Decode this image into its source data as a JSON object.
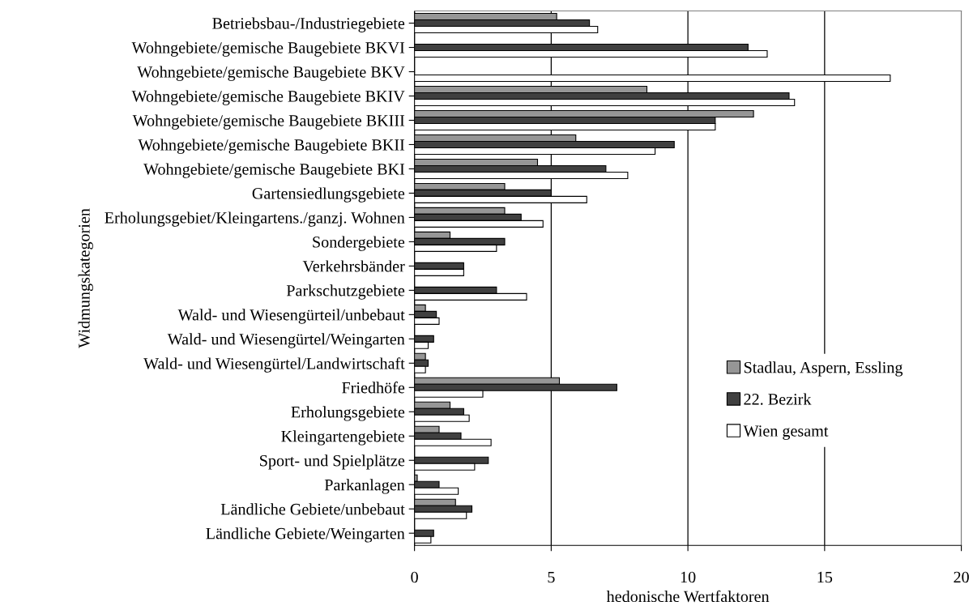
{
  "chart_data": {
    "type": "bar",
    "orientation": "horizontal",
    "xlabel": "hedonische Wertfaktoren",
    "ylabel": "Widmungskategorien",
    "categories": [
      "Betriebsbau-/Industriegebiete",
      "Wohngebiete/gemische Baugebiete BKVI",
      "Wohngebiete/gemische Baugebiete BKV",
      "Wohngebiete/gemische Baugebiete BKIV",
      "Wohngebiete/gemische Baugebiete BKIII",
      "Wohngebiete/gemische Baugebiete BKII",
      "Wohngebiete/gemische Baugebiete BKI",
      "Gartensiedlungsgebiete",
      "Erholungsgebiet/Kleingartens./ganzj. Wohnen",
      "Sondergebiete",
      "Verkehrsbänder",
      "Parkschutzgebiete",
      "Wald- und Wiesengürteil/unbebaut",
      "Wald- und Wiesengürtel/Weingarten",
      "Wald- und Wiesengürtel/Landwirtschaft",
      "Friedhöfe",
      "Erholungsgebiete",
      "Kleingartengebiete",
      "Sport- und Spielplätze",
      "Parkanlagen",
      "Ländliche Gebiete/unbebaut",
      "Ländliche Gebiete/Weingarten"
    ],
    "series": [
      {
        "name": "Stadlau, Aspern, Essling",
        "color": "#969696",
        "values": [
          5.2,
          null,
          null,
          8.5,
          12.4,
          5.9,
          4.5,
          3.3,
          3.3,
          1.3,
          null,
          null,
          0.4,
          null,
          0.4,
          5.3,
          1.3,
          0.9,
          null,
          0.1,
          1.5,
          null
        ]
      },
      {
        "name": "22. Bezirk",
        "color": "#404040",
        "values": [
          6.4,
          12.2,
          null,
          13.7,
          11.0,
          9.5,
          7.0,
          5.0,
          3.9,
          3.3,
          1.8,
          3.0,
          0.8,
          0.7,
          0.5,
          7.4,
          1.8,
          1.7,
          2.7,
          0.9,
          2.1,
          0.7
        ]
      },
      {
        "name": "Wien gesamt",
        "color": "#ffffff",
        "values": [
          6.7,
          12.9,
          17.4,
          13.9,
          11.0,
          8.8,
          7.8,
          6.3,
          4.7,
          3.0,
          1.8,
          4.1,
          0.9,
          0.5,
          0.4,
          2.5,
          2.0,
          2.8,
          2.2,
          1.6,
          1.9,
          0.6
        ]
      }
    ],
    "xlim": [
      0,
      20
    ],
    "xticks": [
      0,
      5,
      10,
      15,
      20
    ],
    "grid": "x",
    "legend": "bottom right"
  }
}
